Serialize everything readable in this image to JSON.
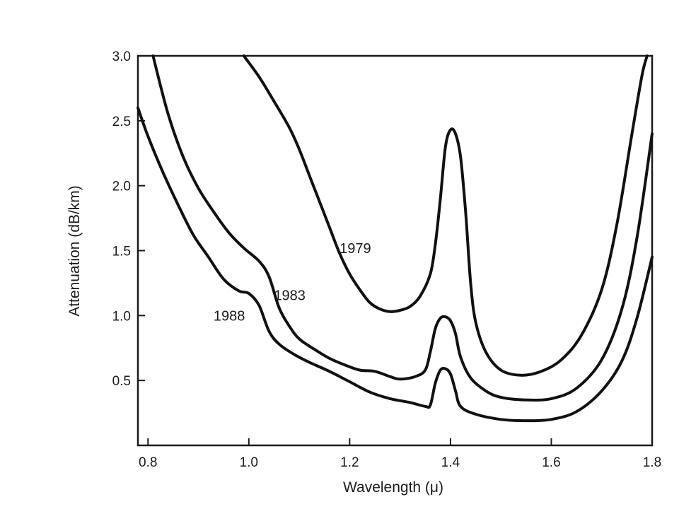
{
  "chart_data": {
    "type": "line",
    "title": "",
    "xlabel": "Wavelength (μ)",
    "ylabel": "Attenuation (dB/km)",
    "xlim": [
      0.78,
      1.8
    ],
    "ylim": [
      0.0,
      3.0
    ],
    "x_ticks": [
      "0.8",
      "1.0",
      "1.2",
      "1.4",
      "1.6",
      "1.8"
    ],
    "y_ticks": [
      "3.0",
      "2.5",
      "2.0",
      "1.5",
      "1.0",
      "0.5"
    ],
    "grid": false,
    "legend": "none",
    "series": [
      {
        "name": "1979",
        "label_at": [
          1.18,
          1.48
        ],
        "points": [
          [
            0.99,
            3.0
          ],
          [
            1.02,
            2.84
          ],
          [
            1.05,
            2.65
          ],
          [
            1.08,
            2.45
          ],
          [
            1.1,
            2.28
          ],
          [
            1.12,
            2.08
          ],
          [
            1.14,
            1.88
          ],
          [
            1.16,
            1.68
          ],
          [
            1.18,
            1.48
          ],
          [
            1.2,
            1.32
          ],
          [
            1.22,
            1.2
          ],
          [
            1.24,
            1.1
          ],
          [
            1.26,
            1.05
          ],
          [
            1.28,
            1.03
          ],
          [
            1.3,
            1.04
          ],
          [
            1.32,
            1.07
          ],
          [
            1.34,
            1.15
          ],
          [
            1.36,
            1.32
          ],
          [
            1.37,
            1.55
          ],
          [
            1.38,
            1.9
          ],
          [
            1.39,
            2.3
          ],
          [
            1.4,
            2.43
          ],
          [
            1.41,
            2.4
          ],
          [
            1.42,
            2.22
          ],
          [
            1.43,
            1.8
          ],
          [
            1.44,
            1.25
          ],
          [
            1.45,
            0.95
          ],
          [
            1.47,
            0.72
          ],
          [
            1.5,
            0.58
          ],
          [
            1.54,
            0.54
          ],
          [
            1.58,
            0.57
          ],
          [
            1.62,
            0.66
          ],
          [
            1.66,
            0.85
          ],
          [
            1.7,
            1.2
          ],
          [
            1.73,
            1.7
          ],
          [
            1.76,
            2.4
          ],
          [
            1.78,
            2.85
          ],
          [
            1.79,
            3.0
          ]
        ]
      },
      {
        "name": "1983",
        "label_at": [
          1.05,
          1.12
        ],
        "points": [
          [
            0.81,
            3.0
          ],
          [
            0.84,
            2.55
          ],
          [
            0.87,
            2.22
          ],
          [
            0.9,
            1.98
          ],
          [
            0.93,
            1.8
          ],
          [
            0.96,
            1.64
          ],
          [
            0.99,
            1.52
          ],
          [
            1.02,
            1.42
          ],
          [
            1.04,
            1.3
          ],
          [
            1.06,
            1.06
          ],
          [
            1.08,
            0.92
          ],
          [
            1.1,
            0.82
          ],
          [
            1.13,
            0.74
          ],
          [
            1.16,
            0.67
          ],
          [
            1.19,
            0.62
          ],
          [
            1.22,
            0.58
          ],
          [
            1.25,
            0.57
          ],
          [
            1.28,
            0.53
          ],
          [
            1.3,
            0.51
          ],
          [
            1.33,
            0.53
          ],
          [
            1.35,
            0.58
          ],
          [
            1.36,
            0.72
          ],
          [
            1.37,
            0.9
          ],
          [
            1.38,
            0.98
          ],
          [
            1.39,
            0.99
          ],
          [
            1.4,
            0.96
          ],
          [
            1.41,
            0.86
          ],
          [
            1.42,
            0.68
          ],
          [
            1.44,
            0.52
          ],
          [
            1.47,
            0.42
          ],
          [
            1.5,
            0.37
          ],
          [
            1.55,
            0.35
          ],
          [
            1.6,
            0.36
          ],
          [
            1.65,
            0.44
          ],
          [
            1.7,
            0.66
          ],
          [
            1.74,
            1.05
          ],
          [
            1.77,
            1.6
          ],
          [
            1.8,
            2.4
          ]
        ]
      },
      {
        "name": "1988",
        "label_at": [
          0.93,
          0.96
        ],
        "points": [
          [
            0.78,
            2.6
          ],
          [
            0.8,
            2.38
          ],
          [
            0.83,
            2.1
          ],
          [
            0.86,
            1.85
          ],
          [
            0.89,
            1.62
          ],
          [
            0.92,
            1.45
          ],
          [
            0.95,
            1.28
          ],
          [
            0.98,
            1.19
          ],
          [
            1.0,
            1.17
          ],
          [
            1.02,
            1.08
          ],
          [
            1.04,
            0.88
          ],
          [
            1.06,
            0.78
          ],
          [
            1.09,
            0.7
          ],
          [
            1.12,
            0.64
          ],
          [
            1.16,
            0.57
          ],
          [
            1.2,
            0.49
          ],
          [
            1.24,
            0.41
          ],
          [
            1.28,
            0.36
          ],
          [
            1.32,
            0.33
          ],
          [
            1.35,
            0.3
          ],
          [
            1.36,
            0.31
          ],
          [
            1.37,
            0.48
          ],
          [
            1.38,
            0.58
          ],
          [
            1.39,
            0.59
          ],
          [
            1.4,
            0.55
          ],
          [
            1.41,
            0.42
          ],
          [
            1.42,
            0.3
          ],
          [
            1.45,
            0.24
          ],
          [
            1.5,
            0.2
          ],
          [
            1.55,
            0.19
          ],
          [
            1.6,
            0.2
          ],
          [
            1.65,
            0.26
          ],
          [
            1.7,
            0.42
          ],
          [
            1.74,
            0.65
          ],
          [
            1.77,
            0.98
          ],
          [
            1.8,
            1.45
          ]
        ]
      }
    ]
  }
}
